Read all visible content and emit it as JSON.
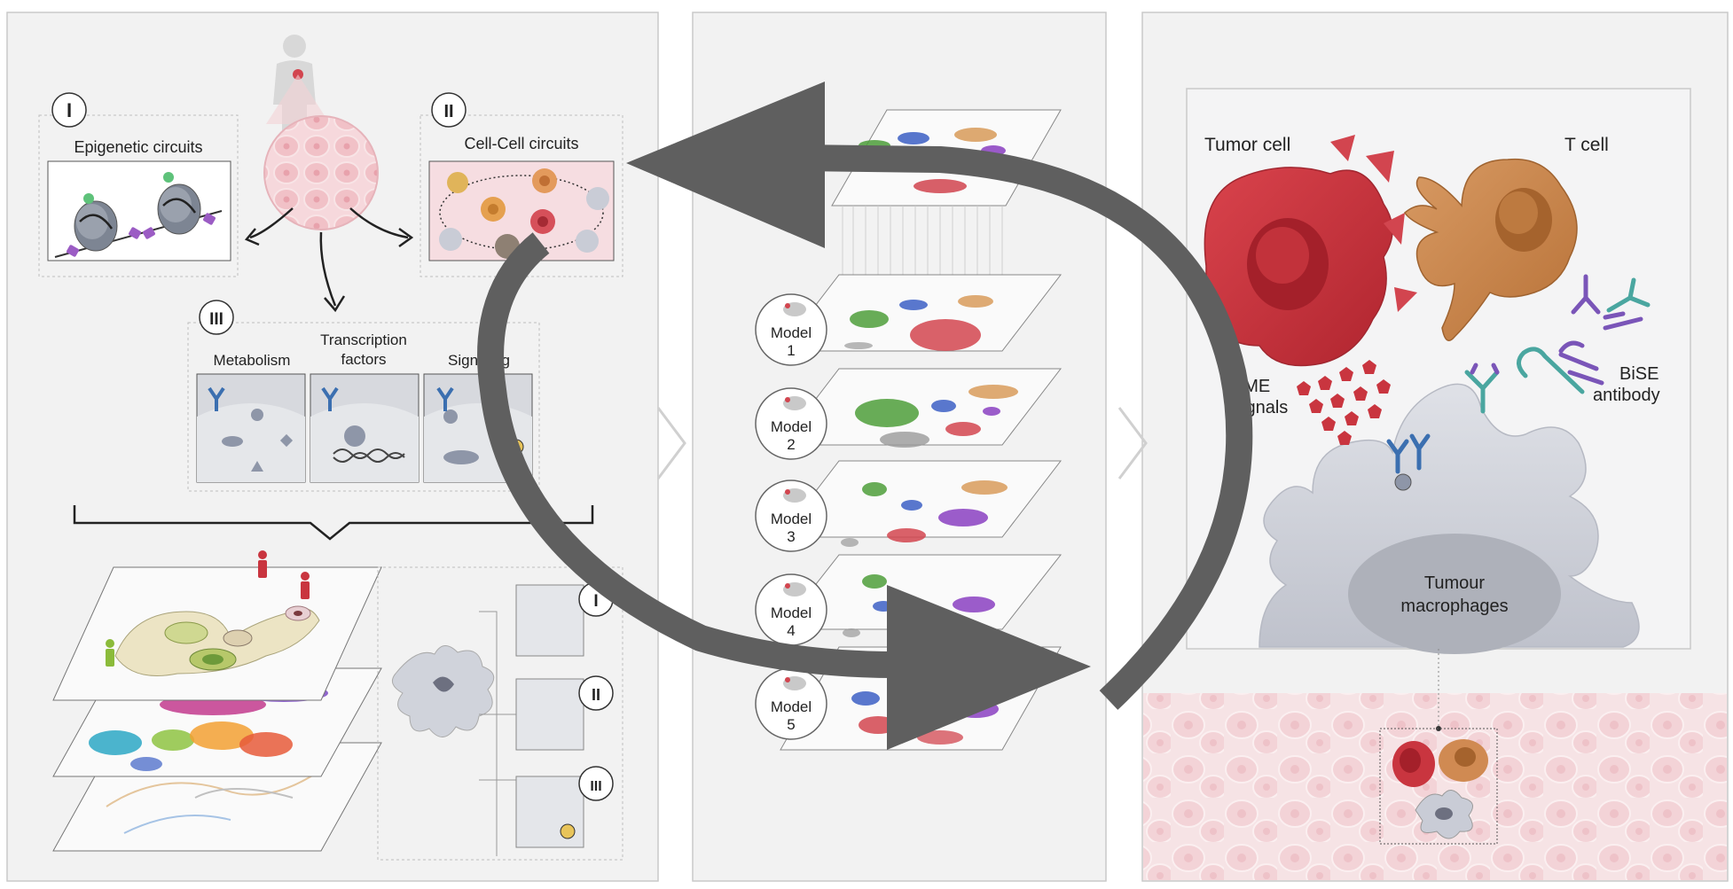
{
  "colors": {
    "panel_bg": "#f2f2f2",
    "panel_border": "#c9c9c9",
    "tumor_red": "#c9353f",
    "tcell_orange": "#c98650",
    "macrophage_gray": "#c9ccd6",
    "arrow_gray": "#5f5f5f",
    "cluster_green": "#4d9e3a",
    "cluster_blue": "#3c5fc4",
    "cluster_orange": "#d89b5a",
    "cluster_purple": "#8a3fc1",
    "cluster_red": "#d2454f",
    "cluster_gray": "#9a9a9a",
    "receptor_blue": "#3b6fb0",
    "antibody_teal": "#4aa6a0",
    "antibody_purple": "#7a55b8"
  },
  "left_panel": {
    "circuit_1": {
      "numeral": "I",
      "title": "Epigenetic circuits"
    },
    "circuit_2": {
      "numeral": "II",
      "title": "Cell-Cell circuits"
    },
    "circuit_3": {
      "numeral": "III",
      "title_line1": "Transcription",
      "title_line2": "factors",
      "metabolism": "Metabolism",
      "signaling": "Signaling"
    },
    "mechanism_numerals": [
      "I",
      "II",
      "III"
    ]
  },
  "middle_panel": {
    "models": [
      {
        "line1": "Model",
        "line2": "1"
      },
      {
        "line1": "Model",
        "line2": "2"
      },
      {
        "line1": "Model",
        "line2": "3"
      },
      {
        "line1": "Model",
        "line2": "4"
      },
      {
        "line1": "Model",
        "line2": "5"
      }
    ]
  },
  "right_panel": {
    "tumor_cell": "Tumor cell",
    "t_cell": "T cell",
    "tme_line1": "TME",
    "tme_line2": "signals",
    "bise_line1": "BiSE",
    "bise_line2": "antibody",
    "macro_line1": "Tumour",
    "macro_line2": "macrophages"
  }
}
